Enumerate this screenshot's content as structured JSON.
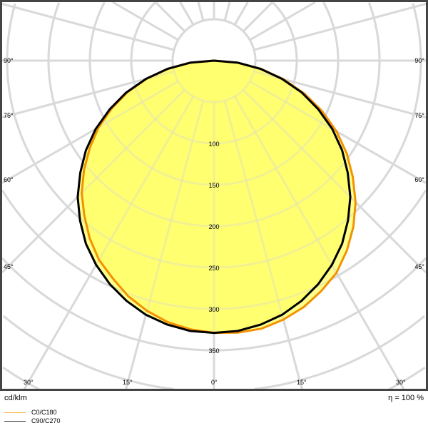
{
  "chart_data": {
    "type": "polar",
    "unit_label": "cd/klm",
    "efficiency_label": "η = 100 %",
    "radial_ticks": [
      100,
      150,
      200,
      250,
      300,
      350
    ],
    "radial_step": 50,
    "angle_step_deg": 15,
    "angle_labels": {
      "sides": [
        "90°",
        "75°",
        "60°",
        "45°"
      ],
      "bottom": [
        "30°",
        "15°",
        "0°",
        "15°",
        "30°"
      ]
    },
    "gamma_deg": [
      0,
      5,
      10,
      15,
      20,
      25,
      30,
      35,
      40,
      45,
      50,
      55,
      60,
      65,
      70,
      75,
      80,
      85,
      90
    ],
    "series": [
      {
        "name": "C0/C180",
        "color": "#f39200",
        "c0": [
          329,
          330,
          329,
          324,
          317,
          307,
          296,
          280,
          262,
          242,
          219,
          196,
          171,
          144,
          116,
          87,
          58,
          29,
          0
        ],
        "c180": [
          329,
          326,
          321,
          313,
          303,
          290,
          278,
          262,
          244,
          226,
          205,
          183,
          161,
          136,
          111,
          84,
          56,
          29,
          0
        ]
      },
      {
        "name": "C90/C270",
        "color": "#000000",
        "c0": [
          329,
          328,
          324,
          318,
          309,
          298,
          285,
          270,
          252,
          233,
          211,
          189,
          165,
          139,
          113,
          85,
          57,
          29,
          0
        ],
        "c180": [
          329,
          328,
          324,
          318,
          309,
          298,
          285,
          270,
          252,
          233,
          211,
          189,
          165,
          139,
          113,
          85,
          57,
          29,
          0
        ]
      }
    ],
    "fill_color": "#ffff66",
    "grid_color": "#d9d9d9",
    "frame_color": "#444444"
  }
}
